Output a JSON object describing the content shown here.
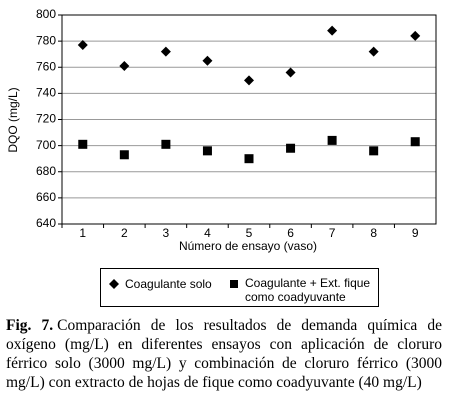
{
  "chart_data": {
    "type": "scatter",
    "xlabel": "Número de ensayo (vaso)",
    "ylabel": "DQO (mg/L)",
    "categories": [
      "1",
      "2",
      "3",
      "4",
      "5",
      "6",
      "7",
      "8",
      "9"
    ],
    "series": [
      {
        "name": "Coagulante solo",
        "color": "#000000",
        "marker": "diamond",
        "values": [
          777,
          761,
          772,
          765,
          750,
          756,
          788,
          772,
          784
        ]
      },
      {
        "name": "Coagulante + Ext. fique como coadyuvante",
        "color": "#000000",
        "marker": "square",
        "values": [
          701,
          693,
          701,
          696,
          690,
          698,
          704,
          696,
          703
        ]
      }
    ],
    "ylim": [
      640,
      800
    ],
    "yticks": [
      640,
      660,
      680,
      700,
      720,
      740,
      760,
      780,
      800
    ],
    "grid": true,
    "caption": {
      "label": "Fig. 7.",
      "text": "Comparación de los resultados de demanda química de oxígeno (mg/L) en diferentes ensayos con aplicación de cloruro férrico solo (3000 mg/L) y combinación de cloruro férrico (3000 mg/L) con extracto de hojas de fique como coadyuvante (40 mg/L)"
    }
  }
}
